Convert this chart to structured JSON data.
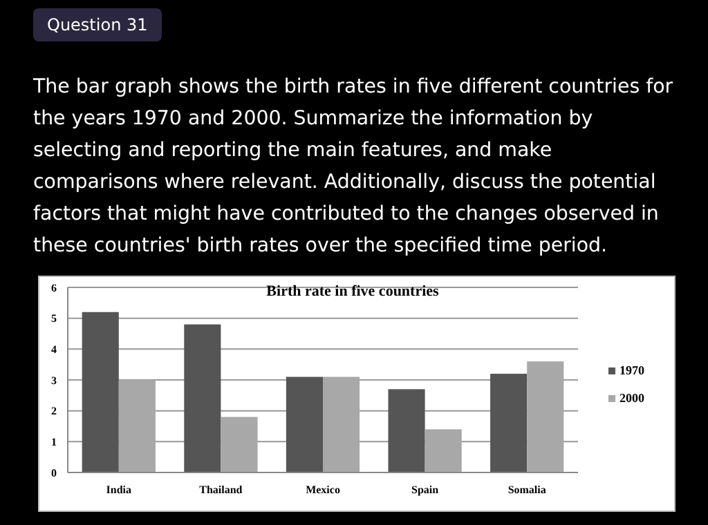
{
  "chart_data": {
    "type": "bar",
    "title": "Birth rate in five countries",
    "annotations": [
      "Question 31",
      "The bar graph shows the birth rates in five different countries for the years 1970 and 2000. Summarize the information by selecting and reporting the main features, and make comparisons where relevant. Additionally, discuss the potential factors that might have contributed to the changes observed in these countries' birth rates over the specified time period."
    ],
    "categories": [
      "India",
      "Thailand",
      "Mexico",
      "Spain",
      "Somalia"
    ],
    "series": [
      {
        "name": "1970",
        "color": "#555555",
        "values": [
          5.2,
          4.8,
          3.1,
          2.7,
          3.2
        ]
      },
      {
        "name": "2000",
        "color": "#a8a8a8",
        "values": [
          3.0,
          1.8,
          3.1,
          1.4,
          3.6
        ]
      }
    ],
    "ylim": [
      0,
      6
    ],
    "yticks": [
      0,
      1,
      2,
      3,
      4,
      5,
      6
    ],
    "grid": "y",
    "legend": "right"
  }
}
